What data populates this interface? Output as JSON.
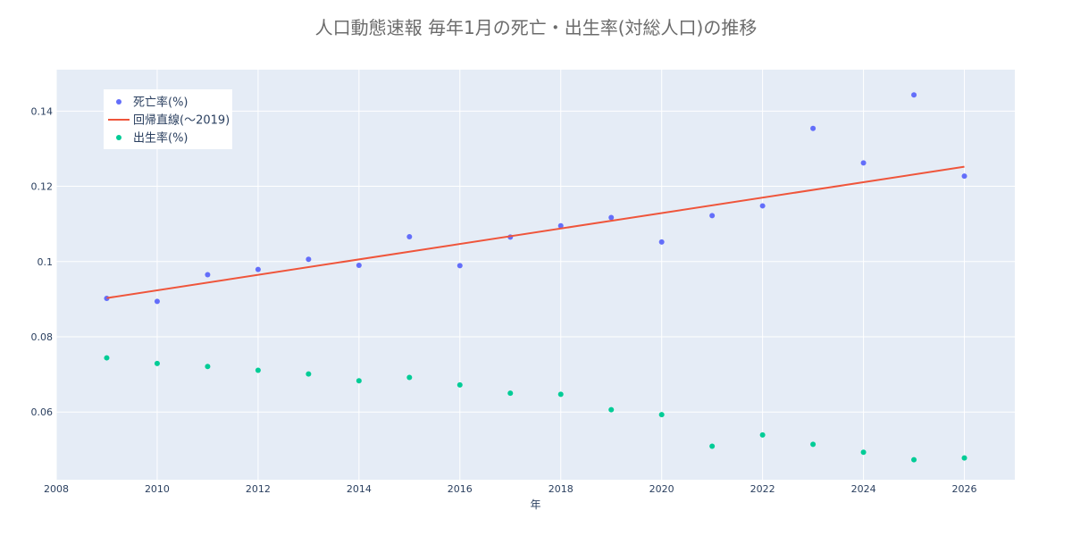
{
  "chart_data": {
    "type": "scatter",
    "title": "人口動態速報 毎年1月の死亡・出生率(対総人口)の推移",
    "xlabel": "年",
    "ylabel": "",
    "xlim": [
      2008,
      2027
    ],
    "ylim": [
      0.042,
      0.151
    ],
    "x_ticks": [
      "2008",
      "2010",
      "2012",
      "2014",
      "2016",
      "2018",
      "2020",
      "2022",
      "2024",
      "2026"
    ],
    "y_ticks": [
      "0.06",
      "0.08",
      "0.1",
      "0.12",
      "0.14"
    ],
    "grid": true,
    "legend_position": "top-left",
    "series": [
      {
        "name": "死亡率(%)",
        "mode": "markers",
        "color": "#636efa",
        "x": [
          2009,
          2010,
          2011,
          2012,
          2013,
          2014,
          2015,
          2016,
          2017,
          2018,
          2019,
          2020,
          2021,
          2022,
          2023,
          2024,
          2025,
          2026
        ],
        "y": [
          0.0902,
          0.0894,
          0.0965,
          0.0979,
          0.1006,
          0.099,
          0.1066,
          0.0989,
          0.1065,
          0.1095,
          0.1117,
          0.1052,
          0.1122,
          0.1148,
          0.1354,
          0.1262,
          0.1443,
          0.1227
        ]
      },
      {
        "name": "回帰直線(〜2019)",
        "mode": "lines",
        "color": "#ef553b",
        "x": [
          2009,
          2026
        ],
        "y": [
          0.0903,
          0.1252
        ]
      },
      {
        "name": "出生率(%)",
        "mode": "markers",
        "color": "#00cc96",
        "x": [
          2009,
          2010,
          2011,
          2012,
          2013,
          2014,
          2015,
          2016,
          2017,
          2018,
          2019,
          2020,
          2021,
          2022,
          2023,
          2024,
          2025,
          2026
        ],
        "y": [
          0.0744,
          0.0729,
          0.0721,
          0.0711,
          0.0701,
          0.0683,
          0.0692,
          0.0672,
          0.065,
          0.0647,
          0.0606,
          0.0593,
          0.0509,
          0.0539,
          0.0514,
          0.0493,
          0.0473,
          0.0478
        ]
      }
    ]
  }
}
